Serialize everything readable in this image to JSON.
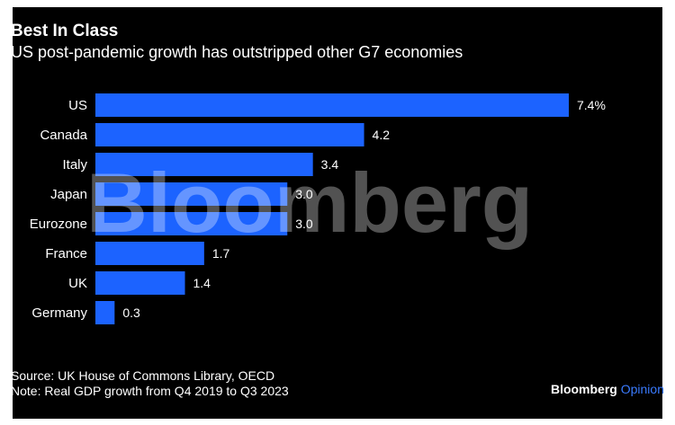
{
  "title": "Best In Class",
  "subtitle": "US post-pandemic growth has outstripped other G7 economies",
  "watermark": "Bloomberg",
  "footer": {
    "source": "Source: UK House of Commons Library, OECD",
    "note": "Note: Real GDP growth from Q4 2019 to Q3 2023"
  },
  "brand": {
    "name": "Bloomberg",
    "section": "Opinion"
  },
  "colors": {
    "bar": "#1c63ff",
    "background": "#000000",
    "text": "#ffffff",
    "brand_accent": "#3a7bff"
  },
  "chart_data": {
    "type": "bar",
    "orientation": "horizontal",
    "title": "Best In Class",
    "subtitle": "US post-pandemic growth has outstripped other G7 economies",
    "categories": [
      "US",
      "Canada",
      "Italy",
      "Japan",
      "Eurozone",
      "France",
      "UK",
      "Germany"
    ],
    "values": [
      7.4,
      4.2,
      3.4,
      3.0,
      3.0,
      1.7,
      1.4,
      0.3
    ],
    "value_labels": [
      "7.4%",
      "4.2",
      "3.4",
      "3.0",
      "3.0",
      "1.7",
      "1.4",
      "0.3"
    ],
    "xlim": [
      0,
      7.4
    ],
    "grid": false,
    "legend": "none"
  }
}
